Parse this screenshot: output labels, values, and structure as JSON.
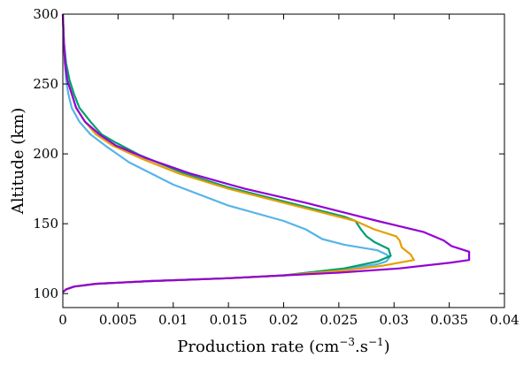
{
  "chart_data": {
    "type": "line",
    "title": "",
    "xlabel": "Production rate (cm",
    "xlabel_sup1": "−3",
    "xlabel_mid": ".s",
    "xlabel_sup2": "−1",
    "xlabel_end": ")",
    "ylabel": "Altitude (km)",
    "xlim": [
      0,
      0.04
    ],
    "ylim": [
      90,
      300
    ],
    "xticks": [
      0,
      0.005,
      0.01,
      0.015,
      0.02,
      0.025,
      0.03,
      0.035,
      0.04
    ],
    "xtick_labels": [
      "0",
      "0.005",
      "0.01",
      "0.015",
      "0.02",
      "0.025",
      "0.03",
      "0.035",
      "0.04"
    ],
    "yticks": [
      100,
      150,
      200,
      250,
      300
    ],
    "ytick_labels": [
      "100",
      "150",
      "200",
      "250",
      "300"
    ],
    "grid": false,
    "series": [
      {
        "color": "#56b4e9",
        "points": [
          [
            0,
            101
          ],
          [
            0.0003,
            103
          ],
          [
            0.001,
            105
          ],
          [
            0.003,
            107
          ],
          [
            0.008,
            109
          ],
          [
            0.015,
            111
          ],
          [
            0.02,
            113
          ],
          [
            0.025,
            117
          ],
          [
            0.0285,
            121
          ],
          [
            0.0293,
            123
          ],
          [
            0.0296,
            126
          ],
          [
            0.0293,
            128
          ],
          [
            0.0285,
            131
          ],
          [
            0.0255,
            135
          ],
          [
            0.0235,
            139
          ],
          [
            0.022,
            146
          ],
          [
            0.02,
            152
          ],
          [
            0.015,
            163
          ],
          [
            0.01,
            178
          ],
          [
            0.006,
            194
          ],
          [
            0.004,
            205
          ],
          [
            0.0025,
            214
          ],
          [
            0.0015,
            223
          ],
          [
            0.0008,
            233
          ],
          [
            0.0005,
            243
          ],
          [
            0.0003,
            253
          ],
          [
            0.0002,
            263
          ],
          [
            0.0001,
            278
          ],
          [
            0,
            300
          ]
        ]
      },
      {
        "color": "#009e73",
        "points": [
          [
            0,
            101
          ],
          [
            0.0003,
            103
          ],
          [
            0.001,
            105
          ],
          [
            0.003,
            107
          ],
          [
            0.008,
            109
          ],
          [
            0.015,
            111
          ],
          [
            0.02,
            113
          ],
          [
            0.0255,
            118
          ],
          [
            0.0285,
            123
          ],
          [
            0.0297,
            127
          ],
          [
            0.0295,
            132
          ],
          [
            0.0282,
            137
          ],
          [
            0.0275,
            141
          ],
          [
            0.027,
            146
          ],
          [
            0.0265,
            152
          ],
          [
            0.0255,
            155
          ],
          [
            0.02,
            166
          ],
          [
            0.015,
            176
          ],
          [
            0.011,
            186
          ],
          [
            0.007,
            199
          ],
          [
            0.0048,
            208
          ],
          [
            0.0035,
            214
          ],
          [
            0.0025,
            223
          ],
          [
            0.0015,
            233
          ],
          [
            0.001,
            243
          ],
          [
            0.0006,
            253
          ],
          [
            0.0003,
            265
          ],
          [
            0.0001,
            280
          ],
          [
            0,
            300
          ]
        ]
      },
      {
        "color": "#e69f00",
        "points": [
          [
            0,
            101
          ],
          [
            0.0003,
            103
          ],
          [
            0.001,
            105
          ],
          [
            0.003,
            107
          ],
          [
            0.008,
            109
          ],
          [
            0.015,
            111
          ],
          [
            0.02,
            113
          ],
          [
            0.026,
            117
          ],
          [
            0.029,
            120
          ],
          [
            0.0318,
            124
          ],
          [
            0.0315,
            128
          ],
          [
            0.0307,
            133
          ],
          [
            0.0305,
            138
          ],
          [
            0.0302,
            141
          ],
          [
            0.0282,
            146
          ],
          [
            0.0265,
            152
          ],
          [
            0.0245,
            156
          ],
          [
            0.02,
            165
          ],
          [
            0.015,
            175
          ],
          [
            0.0105,
            186
          ],
          [
            0.007,
            197
          ],
          [
            0.0045,
            206
          ],
          [
            0.003,
            214
          ],
          [
            0.002,
            223
          ],
          [
            0.0012,
            233
          ],
          [
            0.0008,
            243
          ],
          [
            0.0004,
            253
          ],
          [
            0.0002,
            265
          ],
          [
            0.0001,
            280
          ],
          [
            0,
            300
          ]
        ]
      },
      {
        "color": "#9400d3",
        "points": [
          [
            0,
            101
          ],
          [
            0.0003,
            103
          ],
          [
            0.001,
            105
          ],
          [
            0.003,
            107
          ],
          [
            0.008,
            109
          ],
          [
            0.015,
            111
          ],
          [
            0.02,
            113
          ],
          [
            0.025,
            115
          ],
          [
            0.0305,
            118
          ],
          [
            0.035,
            122
          ],
          [
            0.0368,
            124
          ],
          [
            0.0368,
            130
          ],
          [
            0.0352,
            134
          ],
          [
            0.0345,
            138
          ],
          [
            0.0327,
            144
          ],
          [
            0.0285,
            152
          ],
          [
            0.0265,
            156
          ],
          [
            0.022,
            165
          ],
          [
            0.0165,
            175
          ],
          [
            0.0115,
            186
          ],
          [
            0.0075,
            197
          ],
          [
            0.0048,
            206
          ],
          [
            0.0033,
            214
          ],
          [
            0.002,
            223
          ],
          [
            0.0012,
            233
          ],
          [
            0.0008,
            243
          ],
          [
            0.0004,
            253
          ],
          [
            0.0002,
            265
          ],
          [
            0.0001,
            280
          ],
          [
            0,
            300
          ]
        ]
      }
    ]
  }
}
